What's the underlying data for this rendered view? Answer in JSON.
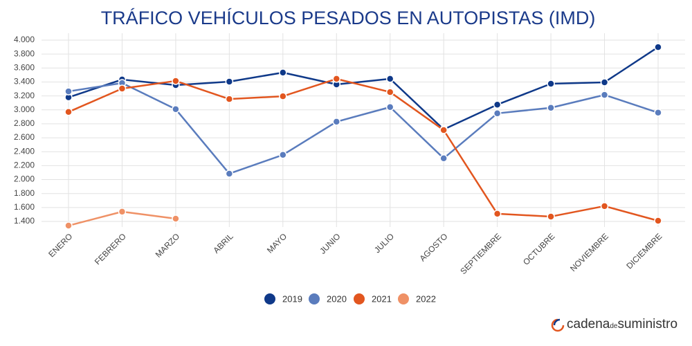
{
  "chart_data": {
    "type": "line",
    "title": "TRÁFICO VEHÍCULOS PESADOS EN AUTOPISTAS (IMD)",
    "categories": [
      "ENERO",
      "FEBRERO",
      "MARZO",
      "ABRIL",
      "MAYO",
      "JUNIO",
      "JULIO",
      "AGOSTO",
      "SEPTIEMBRE",
      "OCTUBRE",
      "NOVIEMBRE",
      "DICIEMBRE"
    ],
    "series": [
      {
        "name": "2019",
        "color": "#0f3989",
        "values": [
          3180,
          3435,
          3355,
          3405,
          3535,
          3365,
          3445,
          2720,
          3075,
          3375,
          3395,
          3900
        ]
      },
      {
        "name": "2020",
        "color": "#5a7cbd",
        "values": [
          3265,
          3385,
          3010,
          2085,
          2355,
          2830,
          3040,
          2305,
          2950,
          3030,
          3215,
          2960
        ]
      },
      {
        "name": "2021",
        "color": "#e2561f",
        "values": [
          2970,
          3305,
          3415,
          3155,
          3195,
          3445,
          3255,
          2710,
          1510,
          1470,
          1620,
          1410
        ]
      },
      {
        "name": "2022",
        "color": "#ef9166",
        "values": [
          1340,
          1540,
          1440,
          null,
          null,
          null,
          null,
          null,
          null,
          null,
          null,
          null
        ]
      }
    ],
    "ylim": [
      1400,
      4000
    ],
    "yticks": [
      {
        "value": 1400,
        "label": "1.400"
      },
      {
        "value": 1600,
        "label": "1.600"
      },
      {
        "value": 1800,
        "label": "1.800"
      },
      {
        "value": 2000,
        "label": "2.000"
      },
      {
        "value": 2200,
        "label": "2.200"
      },
      {
        "value": 2400,
        "label": "2.400"
      },
      {
        "value": 2600,
        "label": "2.600"
      },
      {
        "value": 2800,
        "label": "2.800"
      },
      {
        "value": 3000,
        "label": "3.000"
      },
      {
        "value": 3200,
        "label": "3.200"
      },
      {
        "value": 3400,
        "label": "3.400"
      },
      {
        "value": 3600,
        "label": "3.600"
      },
      {
        "value": 3800,
        "label": "3.800"
      },
      {
        "value": 4000,
        "label": "4.000"
      }
    ],
    "grid": true,
    "legend": "bottom"
  },
  "brand": {
    "name": "cadena",
    "small": "de",
    "rest": "suministro"
  }
}
